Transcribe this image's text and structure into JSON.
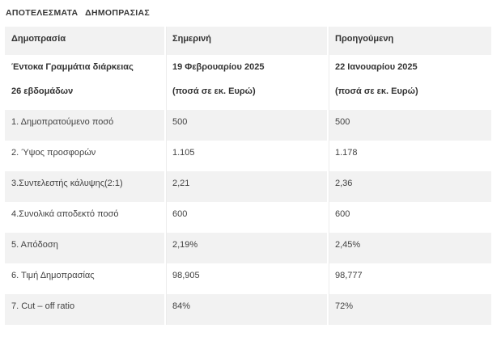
{
  "page": {
    "title": "ΑΠΟΤΕΛΕΣΜΑΤΑ ΔΗΜΟΠΡΑΣΙΑΣ"
  },
  "table": {
    "columns": [
      "Δημοπρασία",
      "Σημερινή",
      "Προηγούμενη"
    ],
    "subheader": {
      "label_lines": [
        "Έντοκα Γραμμάτια διάρκειας",
        "26 εβδομάδων"
      ],
      "current_lines": [
        "19 Φεβρουαρίου 2025",
        "(ποσά σε εκ. Ευρώ)"
      ],
      "previous_lines": [
        "22 Ιανουαρίου 2025",
        "(ποσά σε εκ. Ευρώ)"
      ]
    },
    "rows": [
      {
        "label": "1. Δημοπρατούμενο ποσό",
        "current": "500",
        "previous": "500"
      },
      {
        "label": "2. Ύψος προσφορών",
        "current": "1.105",
        "previous": "1.178"
      },
      {
        "label": "3.Συντελεστής κάλυψης(2:1)",
        "current": "2,21",
        "previous": "2,36"
      },
      {
        "label": "4.Συνολικά αποδεκτό ποσό",
        "current": "600",
        "previous": "600"
      },
      {
        "label": "5. Απόδοση",
        "current": "2,19%",
        "previous": "2,45%"
      },
      {
        "label": "6. Τιμή Δημοπρασίας",
        "current": "98,905",
        "previous": "98,777"
      },
      {
        "label": "7. Cut – off ratio",
        "current": "84%",
        "previous": "72%"
      }
    ],
    "colors": {
      "stripe_gray": "#f2f2f2",
      "row_white": "#ffffff",
      "text": "#3b3b3b",
      "column_separator": "#ffffff"
    }
  }
}
